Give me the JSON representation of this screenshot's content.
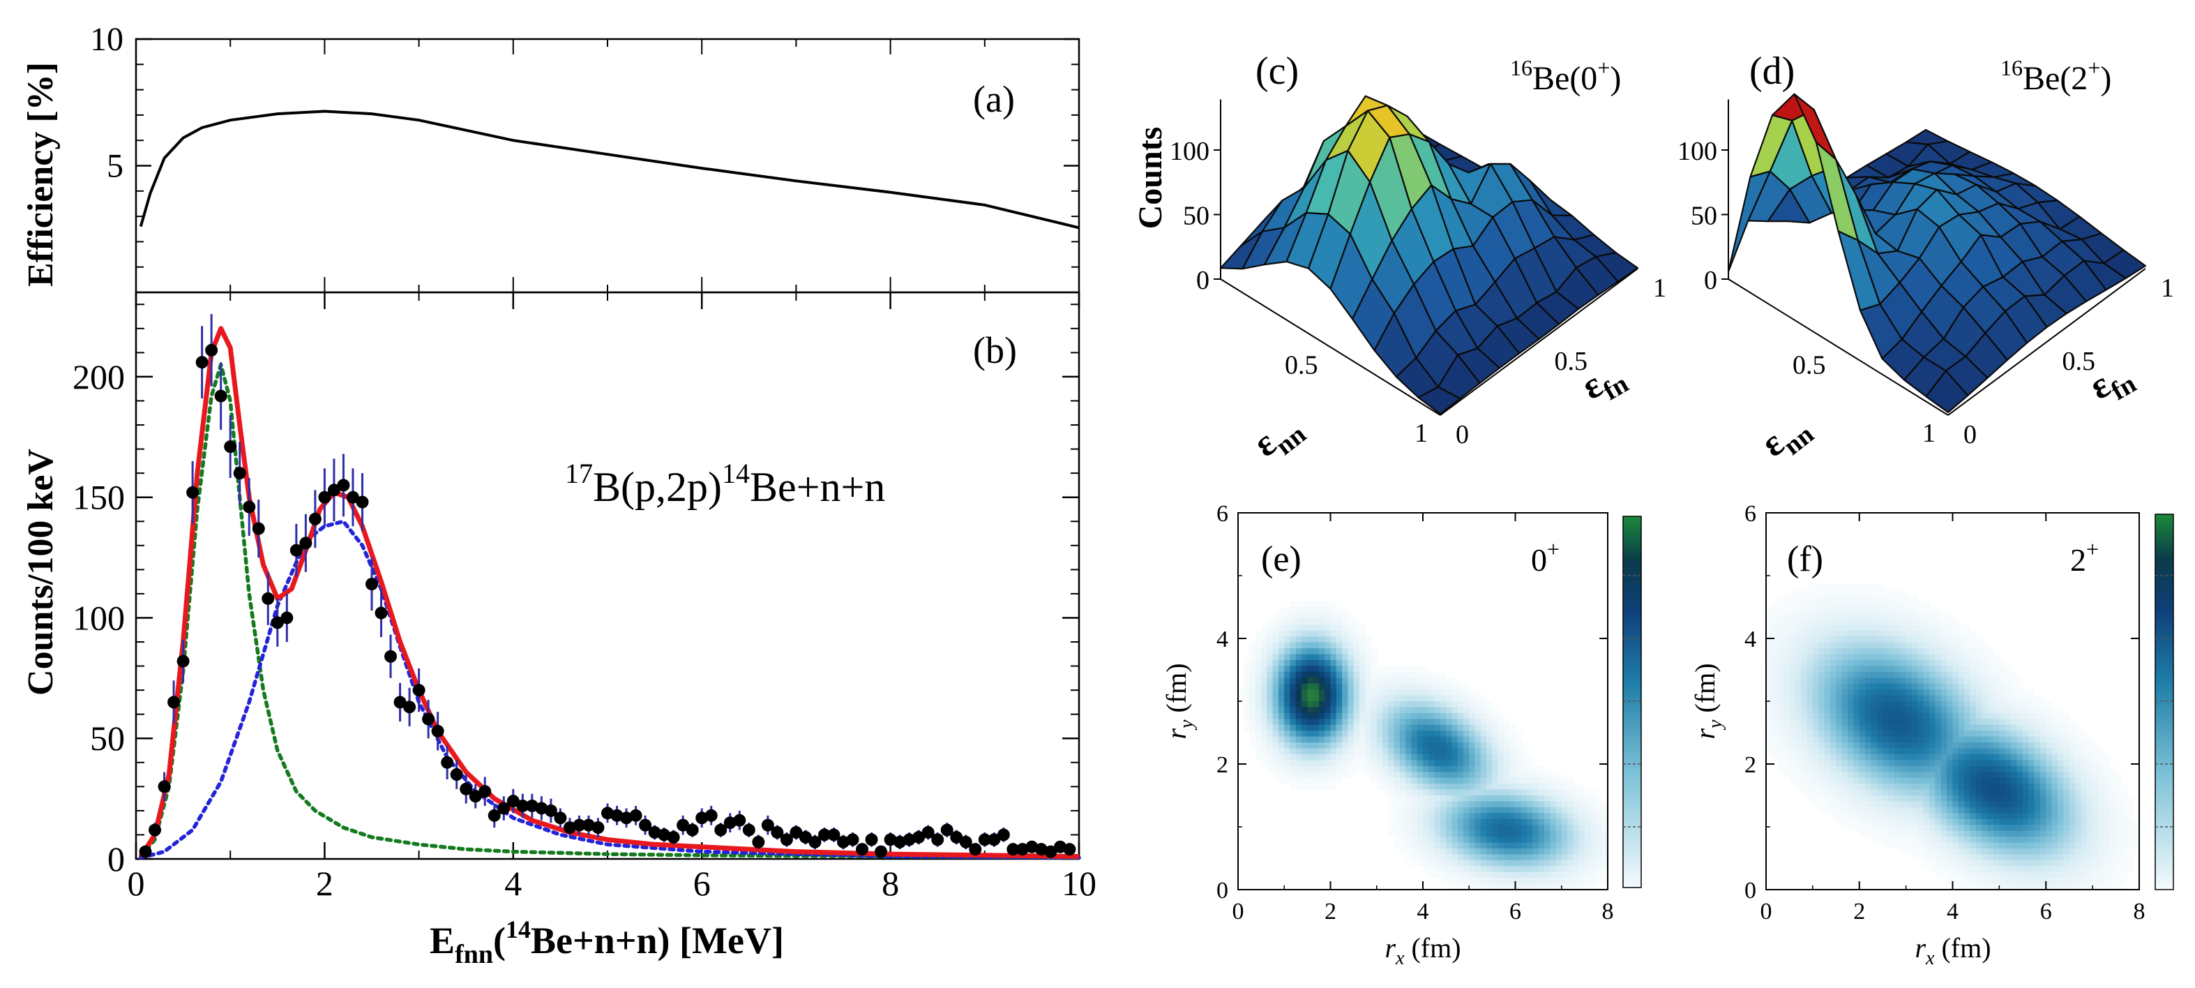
{
  "figure_labels": {
    "a": "(a)",
    "b": "(b)",
    "c": "(c)",
    "d": "(d)",
    "e": "(e)",
    "f": "(f)"
  },
  "chart_data": [
    {
      "id": "a",
      "type": "line",
      "ylabel": "Efficiency [%]",
      "ylim": [
        0,
        10
      ],
      "xlim": [
        0,
        10
      ],
      "yticks": [
        "5",
        "10"
      ],
      "x": [
        0.05,
        0.15,
        0.3,
        0.5,
        0.7,
        1.0,
        1.5,
        2.0,
        2.5,
        3.0,
        3.5,
        4.0,
        5.0,
        6.0,
        7.0,
        8.0,
        9.0,
        10.0
      ],
      "values": [
        2.6,
        3.9,
        5.3,
        6.1,
        6.5,
        6.8,
        7.05,
        7.15,
        7.05,
        6.8,
        6.4,
        6.0,
        5.45,
        4.9,
        4.4,
        3.95,
        3.45,
        2.55
      ]
    },
    {
      "id": "b",
      "type": "scatter",
      "ylabel": "Counts/100 keV",
      "xlabel_main": "E",
      "xlabel_sub": "fnn",
      "xlabel_tail_open": "(",
      "xlabel_sup": "14",
      "xlabel_tail": "Be+n+n) [MeV]",
      "annotation": {
        "sup1": "17",
        "part1": "B(p,2p)",
        "sup2": "14",
        "part2": "Be+n+n"
      },
      "xlim": [
        0,
        10
      ],
      "ylim": [
        0,
        235
      ],
      "xticks": [
        "0",
        "2",
        "4",
        "6",
        "8",
        "10"
      ],
      "yticks": [
        "0",
        "50",
        "100",
        "150",
        "200"
      ],
      "points_x": [
        0.1,
        0.2,
        0.3,
        0.4,
        0.5,
        0.6,
        0.7,
        0.8,
        0.9,
        1.0,
        1.1,
        1.2,
        1.3,
        1.4,
        1.5,
        1.6,
        1.7,
        1.8,
        1.9,
        2.0,
        2.1,
        2.2,
        2.3,
        2.4,
        2.5,
        2.6,
        2.7,
        2.8,
        2.9,
        3.0,
        3.1,
        3.2,
        3.3,
        3.4,
        3.5,
        3.6,
        3.7,
        3.8,
        3.9,
        4.0,
        4.1,
        4.2,
        4.3,
        4.4,
        4.5,
        4.6,
        4.7,
        4.8,
        4.9,
        5.0,
        5.1,
        5.2,
        5.3,
        5.4,
        5.5,
        5.6,
        5.7,
        5.8,
        5.9,
        6.0,
        6.1,
        6.2,
        6.3,
        6.4,
        6.5,
        6.6,
        6.7,
        6.8,
        6.9,
        7.0,
        7.1,
        7.2,
        7.3,
        7.4,
        7.5,
        7.6,
        7.7,
        7.8,
        7.9,
        8.0,
        8.1,
        8.2,
        8.3,
        8.4,
        8.5,
        8.6,
        8.7,
        8.8,
        8.9,
        9.0,
        9.1,
        9.2,
        9.3,
        9.4,
        9.5,
        9.6,
        9.7,
        9.8,
        9.9
      ],
      "points_y": [
        3,
        12,
        30,
        65,
        82,
        152,
        206,
        211,
        192,
        171,
        160,
        146,
        137,
        108,
        98,
        100,
        128,
        131,
        141,
        150,
        153,
        155,
        150,
        148,
        114,
        102,
        84,
        65,
        63,
        70,
        58,
        53,
        40,
        35,
        29,
        26,
        28,
        18,
        21,
        24,
        22,
        22,
        21,
        20,
        17,
        13,
        14,
        14,
        13,
        19,
        18,
        17,
        18,
        14,
        11,
        10,
        9,
        14,
        12,
        17,
        18,
        12,
        15,
        16,
        12,
        7,
        14,
        11,
        8,
        11,
        9,
        7,
        10,
        10,
        7,
        8,
        4,
        8,
        3,
        8,
        7,
        8,
        9,
        11,
        8,
        12,
        9,
        7,
        4,
        8,
        8,
        10,
        4,
        4,
        5,
        4,
        3,
        5,
        4
      ],
      "errors": [
        2,
        3,
        6,
        9,
        9,
        13,
        15,
        15,
        14,
        13,
        13,
        12,
        12,
        11,
        10,
        10,
        11,
        12,
        12,
        12,
        13,
        13,
        12,
        12,
        11,
        10,
        9,
        8,
        8,
        9,
        8,
        8,
        7,
        6,
        6,
        5,
        6,
        5,
        5,
        5,
        5,
        5,
        5,
        5,
        4,
        4,
        4,
        4,
        4,
        4,
        4,
        4,
        4,
        4,
        3,
        3,
        3,
        4,
        3,
        4,
        4,
        3,
        4,
        4,
        3,
        3,
        4,
        3,
        3,
        3,
        3,
        3,
        3,
        3,
        3,
        3,
        2,
        3,
        2,
        3,
        3,
        3,
        3,
        3,
        3,
        3,
        3,
        3,
        2,
        3,
        3,
        3,
        2,
        2,
        2,
        2,
        2,
        2,
        2
      ],
      "series": [
        {
          "name": "fit-total",
          "color": "#e8191e",
          "style": "solid",
          "x": [
            0.05,
            0.2,
            0.35,
            0.5,
            0.65,
            0.8,
            0.9,
            1.0,
            1.1,
            1.2,
            1.35,
            1.5,
            1.65,
            1.8,
            1.95,
            2.1,
            2.25,
            2.4,
            2.6,
            2.8,
            3.0,
            3.2,
            3.5,
            3.8,
            4.2,
            4.6,
            5.0,
            5.5,
            6.0,
            7.0,
            8.0,
            9.0,
            10.0
          ],
          "values": [
            1,
            10,
            35,
            90,
            160,
            210,
            220,
            212,
            180,
            150,
            122,
            108,
            112,
            128,
            145,
            152,
            150,
            138,
            115,
            90,
            70,
            53,
            36,
            25,
            16,
            11,
            8,
            6,
            5,
            3,
            2,
            1.5,
            1
          ]
        },
        {
          "name": "component-0plus",
          "color": "#157a1f",
          "style": "dotted",
          "x": [
            0.05,
            0.2,
            0.35,
            0.5,
            0.65,
            0.8,
            0.9,
            1.0,
            1.1,
            1.2,
            1.35,
            1.5,
            1.7,
            1.9,
            2.2,
            2.5,
            3.0,
            3.5,
            4.0,
            5.0,
            6.0,
            8.0,
            10.0
          ],
          "values": [
            1,
            8,
            30,
            78,
            145,
            192,
            205,
            190,
            150,
            110,
            70,
            45,
            28,
            20,
            13,
            9,
            6,
            4,
            3,
            2,
            1.5,
            1,
            0.5
          ]
        },
        {
          "name": "component-2plus",
          "color": "#2323d9",
          "style": "dotted",
          "x": [
            0.05,
            0.3,
            0.6,
            0.9,
            1.2,
            1.5,
            1.8,
            2.0,
            2.2,
            2.4,
            2.6,
            2.8,
            3.0,
            3.3,
            3.6,
            4.0,
            4.5,
            5.0,
            6.0,
            7.0,
            8.0,
            9.0,
            10.0
          ],
          "values": [
            0.5,
            3,
            12,
            32,
            65,
            105,
            132,
            138,
            140,
            130,
            112,
            88,
            65,
            42,
            28,
            17,
            10,
            6,
            3,
            2,
            1,
            0.7,
            0.5
          ]
        }
      ]
    },
    {
      "id": "c",
      "type": "surface",
      "zlabel": "Counts",
      "title_sup": "16",
      "title_main": "Be(0",
      "title_sup2": "+",
      "title_close": ")",
      "zticks": [
        "0",
        "50",
        "100"
      ],
      "axis1_ticks": [
        "0.5",
        "1"
      ],
      "axis2_ticks": [
        "0",
        "0.5",
        "1"
      ],
      "axis1_label_main": "ε",
      "axis1_label_sub": "nn",
      "axis2_label_main": "ε",
      "axis2_label_sub": "fn",
      "zmax": 150
    },
    {
      "id": "d",
      "type": "surface",
      "title_sup": "16",
      "title_main": "Be(2",
      "title_sup2": "+",
      "title_close": ")",
      "zticks": [
        "0",
        "50",
        "100"
      ],
      "axis1_ticks": [
        "0.5",
        "1"
      ],
      "axis2_ticks": [
        "0",
        "0.5",
        "1"
      ],
      "axis1_label_main": "ε",
      "axis1_label_sub": "nn",
      "axis2_label_main": "ε",
      "axis2_label_sub": "fn",
      "zmax": 150
    },
    {
      "id": "e",
      "type": "heatmap",
      "state_main": "0",
      "state_sup": "+",
      "xlabel_var": "r",
      "xlabel_sub": "x",
      "xlabel_unit": " (fm)",
      "ylabel_var": "r",
      "ylabel_sub": "y",
      "ylabel_unit": " (fm)",
      "xlim": [
        0,
        8
      ],
      "ylim": [
        0,
        6
      ],
      "xticks": [
        "0",
        "2",
        "4",
        "6",
        "8"
      ],
      "yticks": [
        "0",
        "2",
        "4",
        "6"
      ],
      "blobs": [
        {
          "x": 1.6,
          "y": 3.1,
          "sx": 0.55,
          "sy": 0.55,
          "amp": 1.0,
          "rot": -0.5
        },
        {
          "x": 4.3,
          "y": 2.25,
          "sx": 0.85,
          "sy": 0.45,
          "amp": 0.62,
          "rot": -0.35
        },
        {
          "x": 5.8,
          "y": 0.95,
          "sx": 1.0,
          "sy": 0.42,
          "amp": 0.62,
          "rot": -0.1
        }
      ]
    },
    {
      "id": "f",
      "type": "heatmap",
      "state_main": "2",
      "state_sup": "+",
      "xlabel_var": "r",
      "xlabel_sub": "x",
      "xlabel_unit": " (fm)",
      "ylabel_var": "r",
      "ylabel_sub": "y",
      "ylabel_unit": " (fm)",
      "xlim": [
        0,
        8
      ],
      "ylim": [
        0,
        6
      ],
      "xticks": [
        "0",
        "2",
        "4",
        "6",
        "8"
      ],
      "yticks": [
        "0",
        "2",
        "4",
        "6"
      ],
      "blobs": [
        {
          "x": 2.8,
          "y": 2.7,
          "sx": 1.3,
          "sy": 0.75,
          "amp": 0.68,
          "rot": -0.35
        },
        {
          "x": 4.9,
          "y": 1.6,
          "sx": 1.2,
          "sy": 0.65,
          "amp": 0.72,
          "rot": -0.35
        }
      ]
    }
  ],
  "colors": {
    "fit": "#e8191e",
    "component0": "#157a1f",
    "component2": "#2323d9",
    "surface_low": "#1a3f7a",
    "surface_mid": "#2a93b7",
    "surface_high": "#c9dc3f",
    "surface_peak": "#c81e16"
  }
}
